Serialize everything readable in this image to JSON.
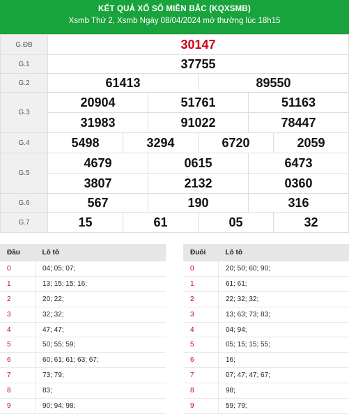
{
  "header": {
    "title": "KẾT QUẢ XỔ SỐ MIỀN BẮC (KQXSMB)",
    "subtitle": "Xsmb Thứ 2, Xsmb Ngày 08/04/2024 mở thưởng lúc 18h15"
  },
  "prizes": [
    {
      "label": "G.ĐB",
      "rows": [
        [
          "30147"
        ]
      ]
    },
    {
      "label": "G.1",
      "rows": [
        [
          "37755"
        ]
      ]
    },
    {
      "label": "G.2",
      "rows": [
        [
          "61413",
          "89550"
        ]
      ]
    },
    {
      "label": "G.3",
      "rows": [
        [
          "20904",
          "51761",
          "51163"
        ],
        [
          "31983",
          "91022",
          "78447"
        ]
      ]
    },
    {
      "label": "G.4",
      "rows": [
        [
          "5498",
          "3294",
          "6720",
          "2059"
        ]
      ]
    },
    {
      "label": "G.5",
      "rows": [
        [
          "4679",
          "0615",
          "6473"
        ],
        [
          "3807",
          "2132",
          "0360"
        ]
      ]
    },
    {
      "label": "G.6",
      "rows": [
        [
          "567",
          "190",
          "316"
        ]
      ]
    },
    {
      "label": "G.7",
      "rows": [
        [
          "15",
          "61",
          "05",
          "32"
        ]
      ]
    }
  ],
  "loto_head": {
    "col1": "Đầu",
    "col2": "Lô tô",
    "rows": [
      {
        "k": "0",
        "v": "04; 05; 07;"
      },
      {
        "k": "1",
        "v": "13; 15; 15; 16;"
      },
      {
        "k": "2",
        "v": "20; 22;"
      },
      {
        "k": "3",
        "v": "32; 32;"
      },
      {
        "k": "4",
        "v": "47; 47;"
      },
      {
        "k": "5",
        "v": "50; 55; 59;"
      },
      {
        "k": "6",
        "v": "60; 61; 61; 63; 67;"
      },
      {
        "k": "7",
        "v": "73; 79;"
      },
      {
        "k": "8",
        "v": "83;"
      },
      {
        "k": "9",
        "v": "90; 94; 98;"
      }
    ]
  },
  "loto_tail": {
    "col1": "Đuôi",
    "col2": "Lô tô",
    "rows": [
      {
        "k": "0",
        "v": "20; 50; 60; 90;"
      },
      {
        "k": "1",
        "v": "61; 61;"
      },
      {
        "k": "2",
        "v": "22; 32; 32;"
      },
      {
        "k": "3",
        "v": "13; 63; 73; 83;"
      },
      {
        "k": "4",
        "v": "04; 94;"
      },
      {
        "k": "5",
        "v": "05; 15; 15; 55;"
      },
      {
        "k": "6",
        "v": "16;"
      },
      {
        "k": "7",
        "v": "07; 47; 47; 67;"
      },
      {
        "k": "8",
        "v": "98;"
      },
      {
        "k": "9",
        "v": "59; 79;"
      }
    ]
  },
  "colors": {
    "header_bg": "#19a33c",
    "special_prize": "#d0021b",
    "loto_key": "#d0021b"
  }
}
